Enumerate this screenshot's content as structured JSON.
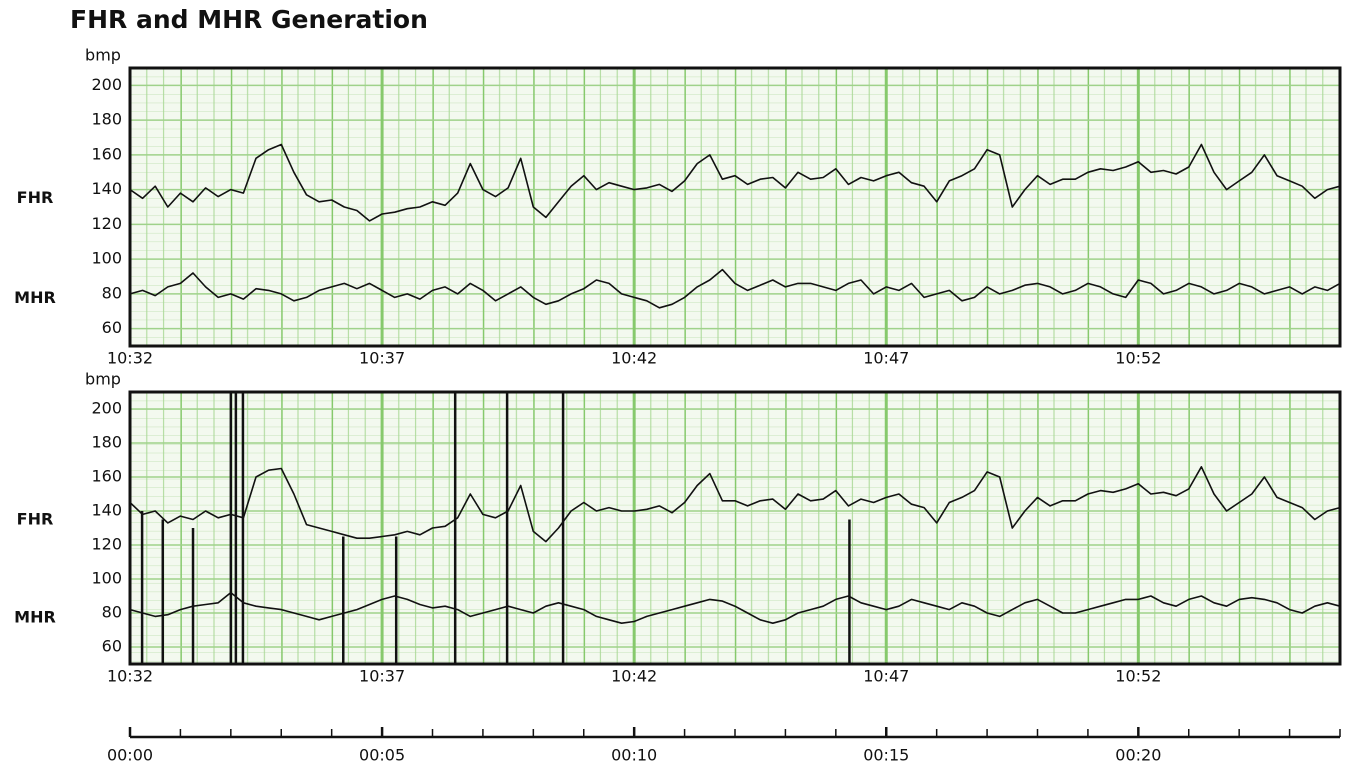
{
  "title": "FHR and MHR Generation",
  "chart_data": [
    {
      "type": "line",
      "y_label": "bmp",
      "x": [
        0,
        0.25,
        0.5,
        0.75,
        1,
        1.25,
        1.5,
        1.75,
        2,
        2.25,
        2.5,
        2.75,
        3,
        3.25,
        3.5,
        3.75,
        4,
        4.25,
        4.5,
        4.75,
        5,
        5.25,
        5.5,
        5.75,
        6,
        6.25,
        6.5,
        6.75,
        7,
        7.25,
        7.5,
        7.75,
        8,
        8.25,
        8.5,
        8.75,
        9,
        9.25,
        9.5,
        9.75,
        10,
        10.25,
        10.5,
        10.75,
        11,
        11.25,
        11.5,
        11.75,
        12,
        12.25,
        12.5,
        12.75,
        13,
        13.25,
        13.5,
        13.75,
        14,
        14.25,
        14.5,
        14.75,
        15,
        15.25,
        15.5,
        15.75,
        16,
        16.25,
        16.5,
        16.75,
        17,
        17.25,
        17.5,
        17.75,
        18,
        18.25,
        18.5,
        18.75,
        19,
        19.25,
        19.5,
        19.75,
        20,
        20.25,
        20.5,
        20.75,
        21,
        21.25,
        21.5,
        21.75,
        22,
        22.25,
        22.5,
        22.75,
        23,
        23.25,
        23.5,
        23.75,
        24
      ],
      "xlim": [
        0,
        24
      ],
      "xticks": [
        {
          "value": 0,
          "label": "10:32"
        },
        {
          "value": 5,
          "label": "10:37"
        },
        {
          "value": 10,
          "label": "10:42"
        },
        {
          "value": 15,
          "label": "10:47"
        },
        {
          "value": 20,
          "label": "10:52"
        }
      ],
      "ylim": [
        50,
        210
      ],
      "yticks": [
        60,
        80,
        100,
        120,
        140,
        160,
        180,
        200
      ],
      "grid": true,
      "series": [
        {
          "name": "FHR",
          "color": "#111111",
          "values": [
            140,
            135,
            142,
            130,
            138,
            133,
            141,
            136,
            140,
            138,
            158,
            163,
            166,
            150,
            137,
            133,
            134,
            130,
            128,
            122,
            126,
            127,
            129,
            130,
            133,
            131,
            138,
            155,
            140,
            136,
            141,
            158,
            130,
            124,
            133,
            142,
            148,
            140,
            144,
            142,
            140,
            141,
            143,
            139,
            145,
            155,
            160,
            146,
            148,
            143,
            146,
            147,
            141,
            150,
            146,
            147,
            152,
            143,
            147,
            145,
            148,
            150,
            144,
            142,
            133,
            145,
            148,
            152,
            163,
            160,
            130,
            140,
            148,
            143,
            146,
            146,
            150,
            152,
            151,
            153,
            156,
            150,
            151,
            149,
            153,
            166,
            150,
            140,
            145,
            150,
            160,
            148,
            145,
            142,
            135,
            140,
            142
          ]
        },
        {
          "name": "MHR",
          "color": "#111111",
          "values": [
            80,
            82,
            79,
            84,
            86,
            92,
            84,
            78,
            80,
            77,
            83,
            82,
            80,
            76,
            78,
            82,
            84,
            86,
            83,
            86,
            82,
            78,
            80,
            77,
            82,
            84,
            80,
            86,
            82,
            76,
            80,
            84,
            78,
            74,
            76,
            80,
            83,
            88,
            86,
            80,
            78,
            76,
            72,
            74,
            78,
            84,
            88,
            94,
            86,
            82,
            85,
            88,
            84,
            86,
            86,
            84,
            82,
            86,
            88,
            80,
            84,
            82,
            86,
            78,
            80,
            82,
            76,
            78,
            84,
            80,
            82,
            85,
            86,
            84,
            80,
            82,
            86,
            84,
            80,
            78,
            88,
            86,
            80,
            82,
            86,
            84,
            80,
            82,
            86,
            84,
            80,
            82,
            84,
            80,
            84,
            82,
            86
          ]
        }
      ]
    },
    {
      "type": "line",
      "y_label": "bmp",
      "x": [
        0,
        0.25,
        0.5,
        0.75,
        1,
        1.25,
        1.5,
        1.75,
        2,
        2.25,
        2.5,
        2.75,
        3,
        3.25,
        3.5,
        3.75,
        4,
        4.25,
        4.5,
        4.75,
        5,
        5.25,
        5.5,
        5.75,
        6,
        6.25,
        6.5,
        6.75,
        7,
        7.25,
        7.5,
        7.75,
        8,
        8.25,
        8.5,
        8.75,
        9,
        9.25,
        9.5,
        9.75,
        10,
        10.25,
        10.5,
        10.75,
        11,
        11.25,
        11.5,
        11.75,
        12,
        12.25,
        12.5,
        12.75,
        13,
        13.25,
        13.5,
        13.75,
        14,
        14.25,
        14.5,
        14.75,
        15,
        15.25,
        15.5,
        15.75,
        16,
        16.25,
        16.5,
        16.75,
        17,
        17.25,
        17.5,
        17.75,
        18,
        18.25,
        18.5,
        18.75,
        19,
        19.25,
        19.5,
        19.75,
        20,
        20.25,
        20.5,
        20.75,
        21,
        21.25,
        21.5,
        21.75,
        22,
        22.25,
        22.5,
        22.75,
        23,
        23.25,
        23.5,
        23.75,
        24
      ],
      "xlim": [
        0,
        24
      ],
      "xticks": [
        {
          "value": 0,
          "label": "10:32"
        },
        {
          "value": 5,
          "label": "10:37"
        },
        {
          "value": 10,
          "label": "10:42"
        },
        {
          "value": 15,
          "label": "10:47"
        },
        {
          "value": 20,
          "label": "10:52"
        }
      ],
      "ylim": [
        50,
        210
      ],
      "yticks": [
        60,
        80,
        100,
        120,
        140,
        160,
        180,
        200
      ],
      "grid": true,
      "series": [
        {
          "name": "FHR",
          "color": "#111111",
          "values": [
            145,
            138,
            140,
            133,
            137,
            135,
            140,
            136,
            138,
            136,
            160,
            164,
            165,
            150,
            132,
            130,
            128,
            126,
            124,
            124,
            125,
            126,
            128,
            126,
            130,
            131,
            136,
            150,
            138,
            136,
            140,
            155,
            128,
            122,
            130,
            140,
            145,
            140,
            142,
            140,
            140,
            141,
            143,
            139,
            145,
            155,
            162,
            146,
            146,
            143,
            146,
            147,
            141,
            150,
            146,
            147,
            152,
            143,
            147,
            145,
            148,
            150,
            144,
            142,
            133,
            145,
            148,
            152,
            163,
            160,
            130,
            140,
            148,
            143,
            146,
            146,
            150,
            152,
            151,
            153,
            156,
            150,
            151,
            149,
            153,
            166,
            150,
            140,
            145,
            150,
            160,
            148,
            145,
            142,
            135,
            140,
            142
          ]
        },
        {
          "name": "MHR",
          "color": "#111111",
          "values": [
            82,
            80,
            78,
            79,
            82,
            84,
            85,
            86,
            92,
            86,
            84,
            83,
            82,
            80,
            78,
            76,
            78,
            80,
            82,
            85,
            88,
            90,
            88,
            85,
            83,
            84,
            82,
            78,
            80,
            82,
            84,
            82,
            80,
            84,
            86,
            84,
            82,
            78,
            76,
            74,
            75,
            78,
            80,
            82,
            84,
            86,
            88,
            87,
            84,
            80,
            76,
            74,
            76,
            80,
            82,
            84,
            88,
            90,
            86,
            84,
            82,
            84,
            88,
            86,
            84,
            82,
            86,
            84,
            80,
            78,
            82,
            86,
            88,
            84,
            80,
            80,
            82,
            84,
            86,
            88,
            88,
            90,
            86,
            84,
            88,
            90,
            86,
            84,
            88,
            89,
            88,
            86,
            82,
            80,
            84,
            86,
            84
          ]
        }
      ],
      "artifacts": [
        {
          "x": 0.24,
          "top": 140
        },
        {
          "x": 0.65,
          "top": 135
        },
        {
          "x": 1.25,
          "top": 130
        },
        {
          "x": 2.0,
          "top": 210
        },
        {
          "x": 2.1,
          "top": 210
        },
        {
          "x": 2.24,
          "top": 210
        },
        {
          "x": 4.23,
          "top": 125
        },
        {
          "x": 5.28,
          "top": 125
        },
        {
          "x": 6.45,
          "top": 210
        },
        {
          "x": 7.48,
          "top": 210
        },
        {
          "x": 8.59,
          "top": 210
        },
        {
          "x": 14.27,
          "top": 135
        }
      ]
    },
    {
      "type": "axis",
      "xlim": [
        0,
        24
      ],
      "xticks": [
        {
          "value": 0,
          "label": "00:00"
        },
        {
          "value": 5,
          "label": "00:05"
        },
        {
          "value": 10,
          "label": "00:10"
        },
        {
          "value": 15,
          "label": "00:15"
        },
        {
          "value": 20,
          "label": "00:20"
        }
      ],
      "xminorticks": [
        0,
        1,
        2,
        3,
        4,
        5,
        6,
        7,
        8,
        9,
        10,
        11,
        12,
        13,
        14,
        15,
        16,
        17,
        18,
        19,
        20,
        21,
        22,
        23,
        24
      ]
    }
  ]
}
